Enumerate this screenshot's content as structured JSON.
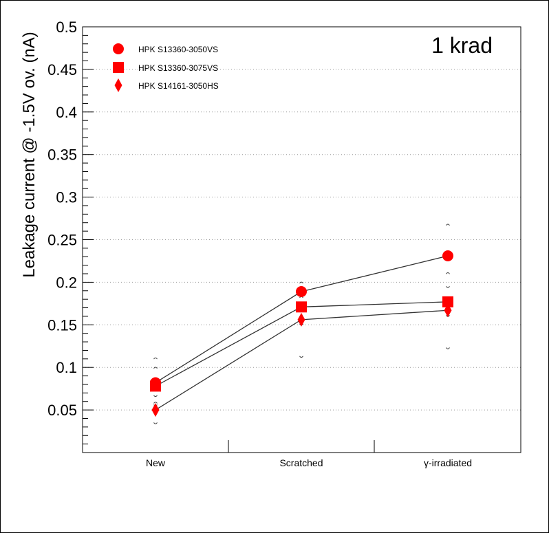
{
  "chart_data": {
    "type": "scatter",
    "title": "",
    "annotation": "1 krad",
    "xlabel": "",
    "ylabel": "Leakage current @ -1.5V ov. (nA)",
    "categories": [
      "New",
      "Scratched",
      "γ-irradiated"
    ],
    "ylim": [
      0.0,
      0.5
    ],
    "yticks": [
      "0.05",
      "0.1",
      "0.15",
      "0.2",
      "0.25",
      "0.3",
      "0.35",
      "0.4",
      "0.45",
      "0.5"
    ],
    "grid": true,
    "legend_position": "top-left",
    "series": [
      {
        "name": "HPK S13360-3050VS",
        "marker": "circle",
        "color": "#ff0000",
        "values": [
          0.082,
          0.189,
          0.231
        ],
        "error_upper": [
          0.111,
          0.2,
          0.268
        ],
        "error_lower": [
          0.066,
          0.15,
          0.194
        ]
      },
      {
        "name": "HPK S13360-3075VS",
        "marker": "square",
        "color": "#ff0000",
        "values": [
          0.078,
          0.171,
          0.177
        ],
        "error_upper": [
          0.1,
          0.183,
          0.211
        ],
        "error_lower": [
          0.055,
          0.15,
          0.16
        ]
      },
      {
        "name": "HPK S14161-3050HS",
        "marker": "diamond",
        "color": "#ff0000",
        "values": [
          0.05,
          0.156,
          0.167
        ],
        "error_upper": [
          0.059,
          0.167,
          0.177
        ],
        "error_lower": [
          0.034,
          0.112,
          0.122
        ]
      }
    ]
  }
}
